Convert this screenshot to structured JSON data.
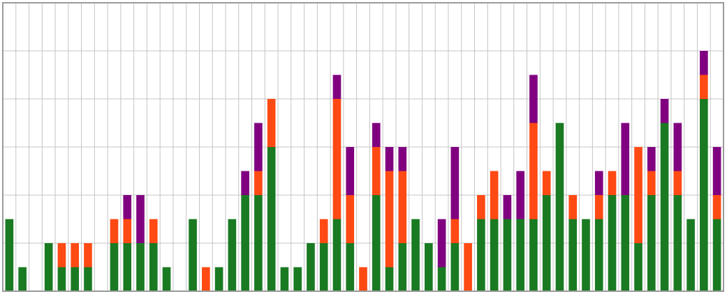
{
  "chart_data": {
    "type": "stacked_bar",
    "categories": [
      null,
      null,
      null,
      null,
      null,
      null,
      null,
      null,
      null,
      null,
      null,
      null,
      null,
      null,
      null,
      null,
      null,
      null,
      null,
      null,
      null,
      null,
      null,
      null,
      null,
      null,
      null,
      null,
      null,
      null,
      null,
      null,
      null,
      null,
      null,
      null,
      null,
      null,
      null,
      null,
      null,
      null,
      null,
      null,
      null,
      null,
      null,
      null,
      null,
      null,
      null,
      null,
      null,
      null,
      null
    ],
    "series": [
      {
        "color": "#1a7a22",
        "values": [
          3,
          1,
          0,
          2,
          1,
          1,
          1,
          0,
          2,
          2,
          2,
          2,
          1,
          0,
          3,
          0,
          1,
          3,
          4,
          4,
          6,
          1,
          1,
          2,
          2,
          3,
          2,
          0,
          4,
          1,
          2,
          3,
          2,
          1,
          2,
          0,
          3,
          3,
          3,
          3,
          3,
          4,
          7,
          3,
          3,
          3,
          4,
          4,
          2,
          4,
          7,
          4,
          3,
          8,
          3
        ]
      },
      {
        "color": "#ff4a14",
        "values": [
          0,
          0,
          0,
          0,
          1,
          1,
          1,
          0,
          1,
          1,
          0,
          1,
          0,
          0,
          0,
          1,
          0,
          0,
          0,
          1,
          2,
          0,
          0,
          0,
          1,
          5,
          2,
          1,
          2,
          4,
          3,
          0,
          0,
          0,
          1,
          2,
          1,
          2,
          0,
          0,
          4,
          1,
          0,
          1,
          0,
          1,
          1,
          0,
          4,
          1,
          0,
          1,
          0,
          1,
          1
        ]
      },
      {
        "color": "#800080",
        "values": [
          0,
          0,
          0,
          0,
          0,
          0,
          0,
          0,
          0,
          1,
          2,
          0,
          0,
          0,
          0,
          0,
          0,
          0,
          1,
          2,
          0,
          0,
          0,
          0,
          0,
          1,
          2,
          0,
          1,
          1,
          1,
          0,
          0,
          2,
          3,
          0,
          0,
          0,
          1,
          2,
          2,
          0,
          0,
          0,
          0,
          1,
          0,
          3,
          0,
          1,
          1,
          2,
          0,
          1,
          2
        ]
      }
    ],
    "ylim": [
      0,
      12
    ],
    "yticks": [
      0,
      2,
      4,
      6,
      8,
      10,
      12
    ],
    "grid": true
  }
}
